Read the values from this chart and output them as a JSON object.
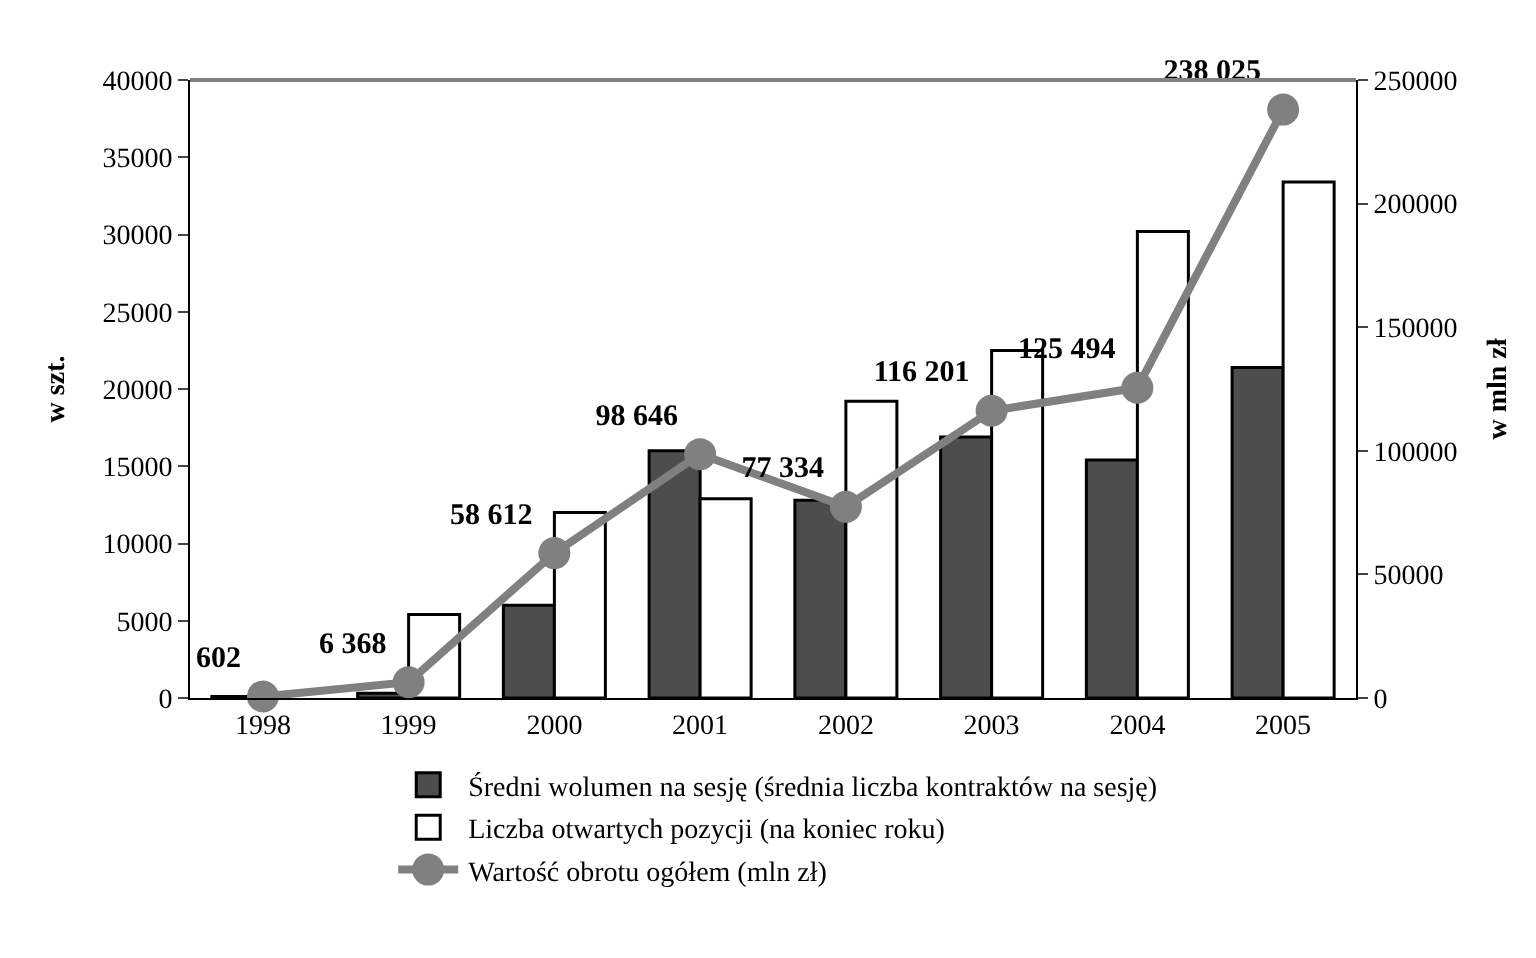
{
  "chart_data": {
    "type": "bar",
    "ylabel": "w szt.",
    "y2label": "w mln zł",
    "categories": [
      "1998",
      "1999",
      "2000",
      "2001",
      "2002",
      "2003",
      "2004",
      "2005"
    ],
    "series": [
      {
        "name": "Średni wolumen na sesję (średnia liczba kontraktów na sesję)",
        "color": "#4d4d4d",
        "values": [
          100,
          300,
          6000,
          16000,
          12800,
          16900,
          15400,
          21400
        ]
      },
      {
        "name": "Liczba otwartych pozycji (na koniec roku)",
        "color": "#ffffff",
        "values": [
          null,
          5400,
          12000,
          12900,
          19200,
          22500,
          30200,
          33400
        ]
      },
      {
        "name": "Wartość obrotu ogółem (mln zł)",
        "type": "line",
        "axis": "y2",
        "color": "#808080",
        "marker": "circle",
        "data_labels": true,
        "values": [
          602,
          6368,
          58612,
          98646,
          77334,
          116201,
          125494,
          238025
        ]
      }
    ],
    "ylim": [
      0,
      40000
    ],
    "yticks": [
      0,
      5000,
      10000,
      15000,
      20000,
      25000,
      30000,
      35000,
      40000
    ],
    "y2lim": [
      0,
      250000
    ],
    "y2ticks": [
      0,
      50000,
      100000,
      150000,
      200000,
      250000
    ],
    "grid": false,
    "legend": "bottom"
  }
}
